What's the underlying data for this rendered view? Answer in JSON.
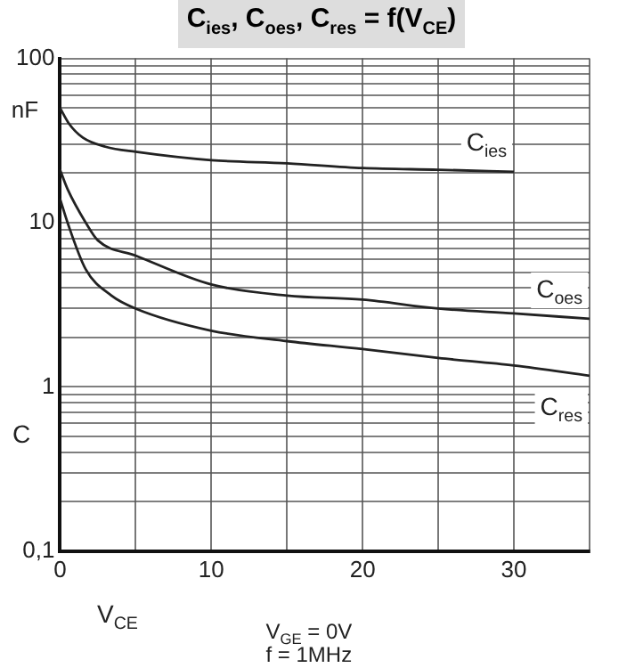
{
  "chart_data": {
    "type": "line",
    "title": "C$_{ies}$, C$_{oes}$, C$_{res}$ = f(V$_{CE}$)",
    "xlabel": "V$_{CE}$",
    "ylabel": "C",
    "annotations": [
      "nF",
      "V$_{GE}$ = 0V",
      "f = 1MHz"
    ],
    "log": "y",
    "grid": true,
    "legend": false,
    "marker": "none",
    "line_style": "solid",
    "xlim": [
      0,
      35
    ],
    "xticks": [
      0,
      {
        "value": 5,
        "label": null
      },
      10,
      {
        "value": 15,
        "label": null
      },
      20,
      {
        "value": 25,
        "label": null
      },
      30,
      {
        "value": 35,
        "label": null
      }
    ],
    "ylim": [
      0.1,
      100
    ],
    "yticks": [
      {
        "value": 0.1,
        "label": "0,1"
      },
      {
        "value": 0.2,
        "label": null
      },
      {
        "value": 0.3,
        "label": null
      },
      {
        "value": 0.4,
        "label": null
      },
      {
        "value": 0.5,
        "label": null
      },
      {
        "value": 0.6,
        "label": null
      },
      {
        "value": 0.7,
        "label": null
      },
      {
        "value": 0.8,
        "label": null
      },
      {
        "value": 0.9,
        "label": null
      },
      1,
      {
        "value": 2,
        "label": null
      },
      {
        "value": 3,
        "label": null
      },
      {
        "value": 4,
        "label": null
      },
      {
        "value": 5,
        "label": null
      },
      {
        "value": 6,
        "label": null
      },
      {
        "value": 7,
        "label": null
      },
      {
        "value": 8,
        "label": null
      },
      {
        "value": 9,
        "label": null
      },
      10,
      {
        "value": 20,
        "label": null
      },
      {
        "value": 30,
        "label": null
      },
      {
        "value": 40,
        "label": null
      },
      {
        "value": 50,
        "label": null
      },
      {
        "value": 60,
        "label": null
      },
      {
        "value": 70,
        "label": null
      },
      {
        "value": 80,
        "label": null
      },
      {
        "value": 90,
        "label": null
      },
      100
    ],
    "series": [
      {
        "name": "C$_{ies}$",
        "color": "#222222",
        "x": [
          0,
          0.6,
          1.5,
          3,
          5,
          10,
          15,
          20,
          25,
          30
        ],
        "values": [
          50,
          40,
          33,
          29,
          27,
          24,
          23,
          21.5,
          21,
          20.4
        ]
      },
      {
        "name": "C$_{oes}$",
        "color": "#222222",
        "x": [
          0,
          0.5,
          1.7,
          2.5,
          5,
          10,
          15,
          20,
          25,
          30,
          35
        ],
        "values": [
          21,
          16,
          10,
          7.8,
          6.3,
          4.2,
          3.6,
          3.4,
          3,
          2.8,
          2.6
        ]
      },
      {
        "name": "C$_{res}$",
        "color": "#222222",
        "x": [
          0,
          0.5,
          1.7,
          3.4,
          5,
          10,
          15,
          20,
          25,
          30,
          35
        ],
        "values": [
          14,
          10,
          5.2,
          3.6,
          3,
          2.2,
          1.9,
          1.7,
          1.5,
          1.35,
          1.17
        ]
      }
    ]
  }
}
